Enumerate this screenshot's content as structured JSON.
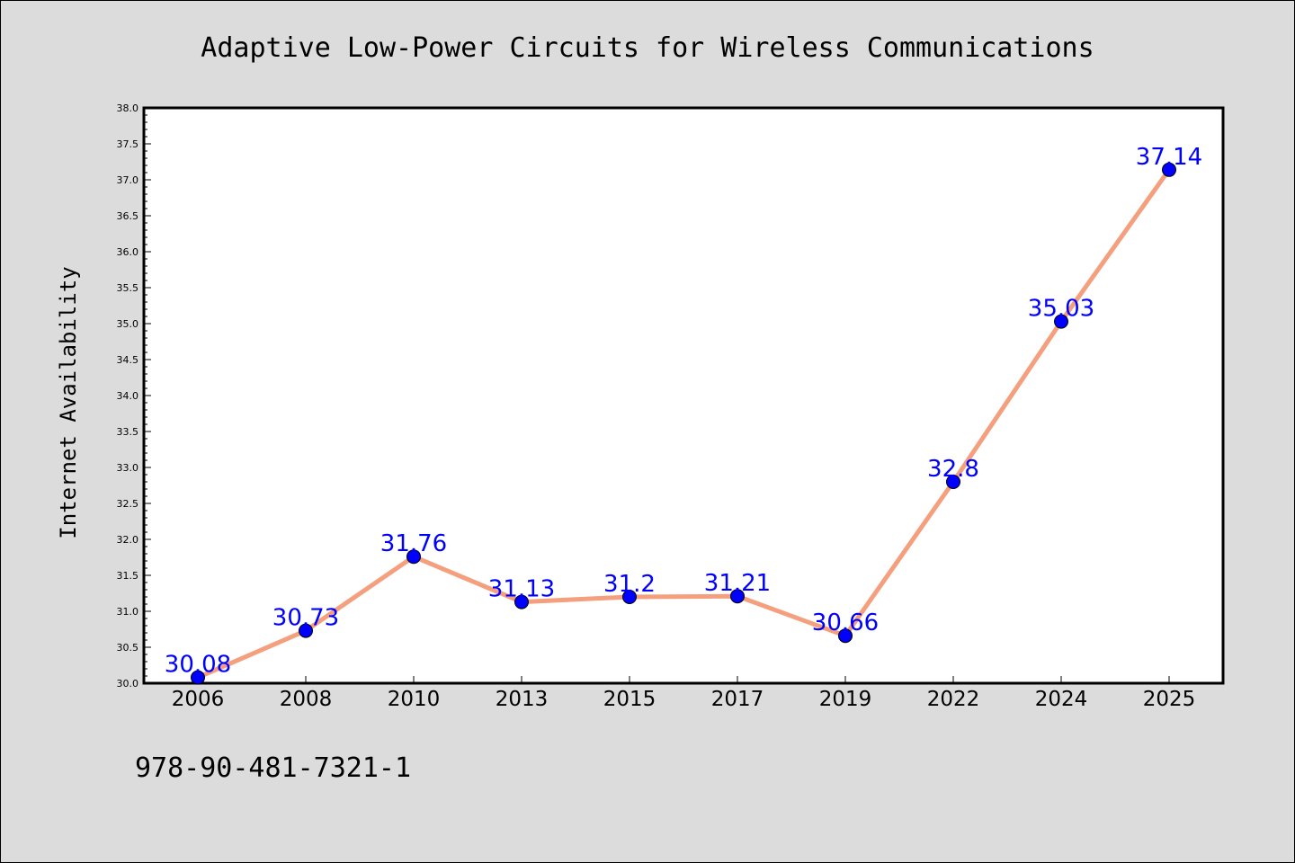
{
  "colors": {
    "background": "#dcdcdc",
    "plot_background": "#ffffff",
    "line": "#f4a07e",
    "marker": "#0000ff",
    "data_label": "#0000ff"
  },
  "footer_text": "978-90-481-7321-1",
  "chart_data": {
    "type": "line",
    "title": "Adaptive Low-Power Circuits for Wireless Communications",
    "xlabel": "",
    "ylabel": "Internet Availability",
    "categories": [
      "2006",
      "2008",
      "2010",
      "2013",
      "2015",
      "2017",
      "2019",
      "2022",
      "2024",
      "2025"
    ],
    "series": [
      {
        "values": [
          30.08,
          30.73,
          31.76,
          31.13,
          31.2,
          31.21,
          30.66,
          32.8,
          35.03,
          37.14
        ],
        "labels": [
          "30.08",
          "30.73",
          "31.76",
          "31.13",
          "31.2",
          "31.21",
          "30.66",
          "32.8",
          "35.03",
          "37.14"
        ]
      }
    ],
    "ylim": [
      30.0,
      38.0
    ],
    "yticks": [
      "30.0",
      "30.5",
      "31.0",
      "31.5",
      "32.0",
      "32.5",
      "33.0",
      "33.5",
      "34.0",
      "34.5",
      "35.0",
      "35.5",
      "36.0",
      "36.5",
      "37.0",
      "37.5",
      "38.0"
    ],
    "grid": false,
    "legend": "none"
  }
}
